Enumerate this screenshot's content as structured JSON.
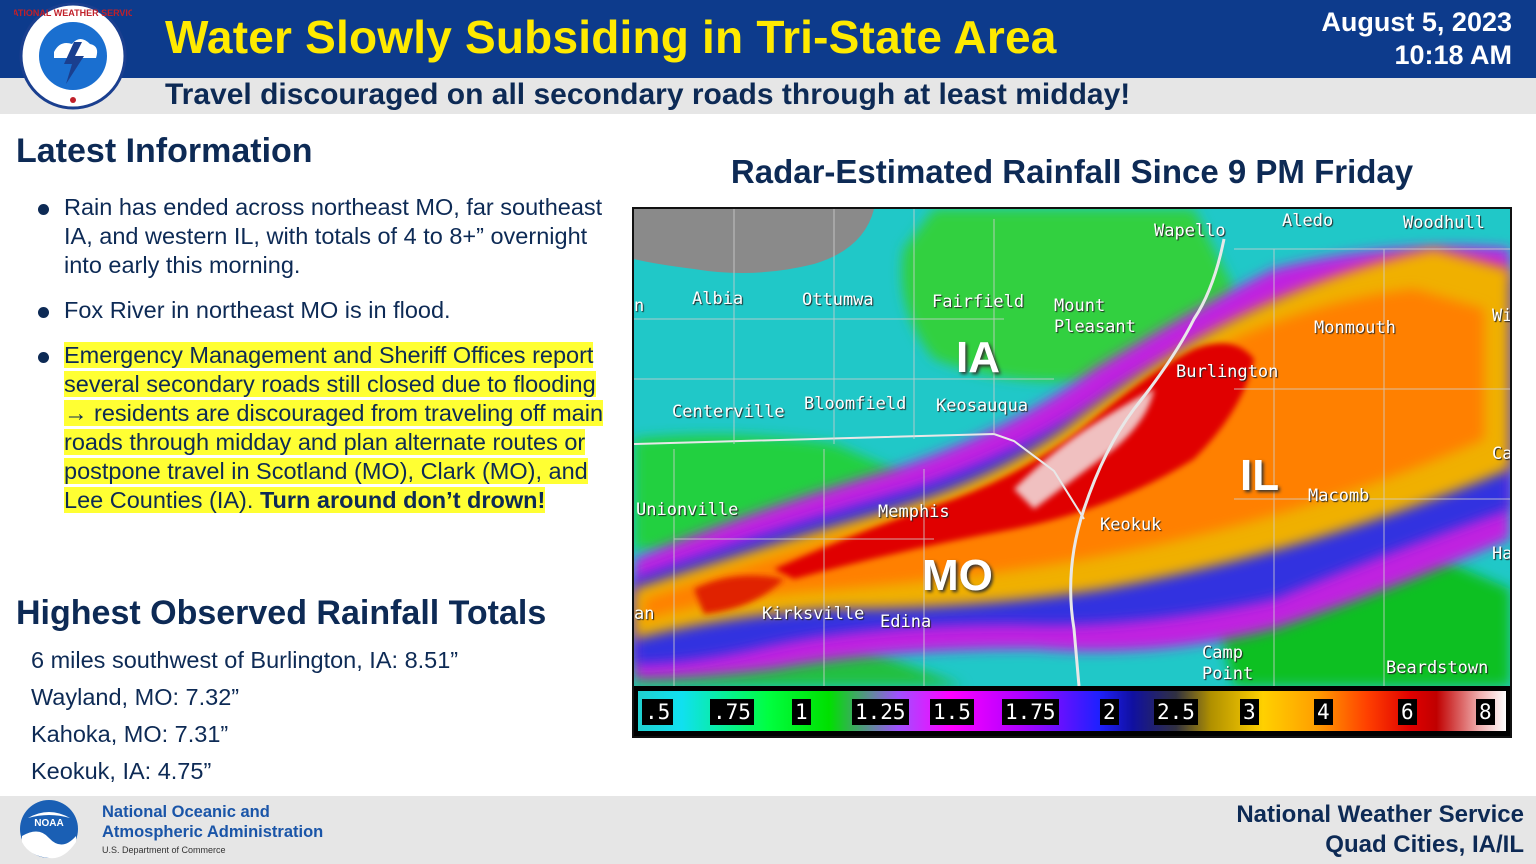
{
  "header": {
    "title": "Water Slowly Subsiding in Tri-State Area",
    "date": "August 5, 2023",
    "time": "10:18 AM",
    "subtitle": "Travel discouraged on all secondary roads through at least midday!",
    "logo_text": "NATIONAL WEATHER SERVICE"
  },
  "latest": {
    "title": "Latest Information",
    "bullets": [
      "Rain has ended across northeast MO, far southeast IA, and western IL, with totals of 4 to 8+” overnight into early this morning.",
      "Fox River in northeast MO is in flood.",
      "Emergency Management and Sheriff Offices report several secondary roads still closed due to flooding → residents are discouraged from traveling off main roads through midday and plan alternate routes or postpone travel in Scotland (MO), Clark (MO), and Lee Counties (IA)."
    ],
    "emphasis": "Turn around don’t drown!"
  },
  "totals": {
    "title": "Highest Observed Rainfall Totals",
    "items": [
      "6 miles southwest of Burlington, IA:  8.51”",
      "Wayland, MO:  7.32”",
      "Kahoka, MO:  7.31”",
      "Keokuk, IA:  4.75”"
    ]
  },
  "map": {
    "title": "Radar-Estimated Rainfall Since 9 PM Friday",
    "states": [
      "IA",
      "IL",
      "MO"
    ],
    "cities": [
      "Wapello",
      "Aledo",
      "Woodhull",
      "Albia",
      "Ottumwa",
      "Fairfield",
      "Mount",
      "Pleasant",
      "Monmouth",
      "Centerville",
      "Bloomfield",
      "Keosauqua",
      "Burlington",
      "Unionville",
      "Memphis",
      "Keokuk",
      "Macomb",
      "Kirksville",
      "Edina",
      "Camp",
      "Point",
      "Beardstown",
      "n",
      "an",
      "Wi",
      "Ca",
      "Ha"
    ],
    "legend_ticks": [
      ".5",
      ".75",
      "1",
      "1.25",
      "1.5",
      "1.75",
      "2",
      "2.5",
      "3",
      "4",
      "6",
      "8"
    ]
  },
  "footer": {
    "noaa_line1": "National Oceanic and",
    "noaa_line2": "Atmospheric Administration",
    "noaa_sub": "U.S. Department of Commerce",
    "noaa_badge": "NOAA",
    "office_line1": "National Weather Service",
    "office_line2": "Quad Cities, IA/IL"
  },
  "colors": {
    "header_bg": "#0d3b8c",
    "title_yellow": "#ffea00",
    "text_navy": "#0d2a55",
    "highlight": "#ffff33"
  }
}
